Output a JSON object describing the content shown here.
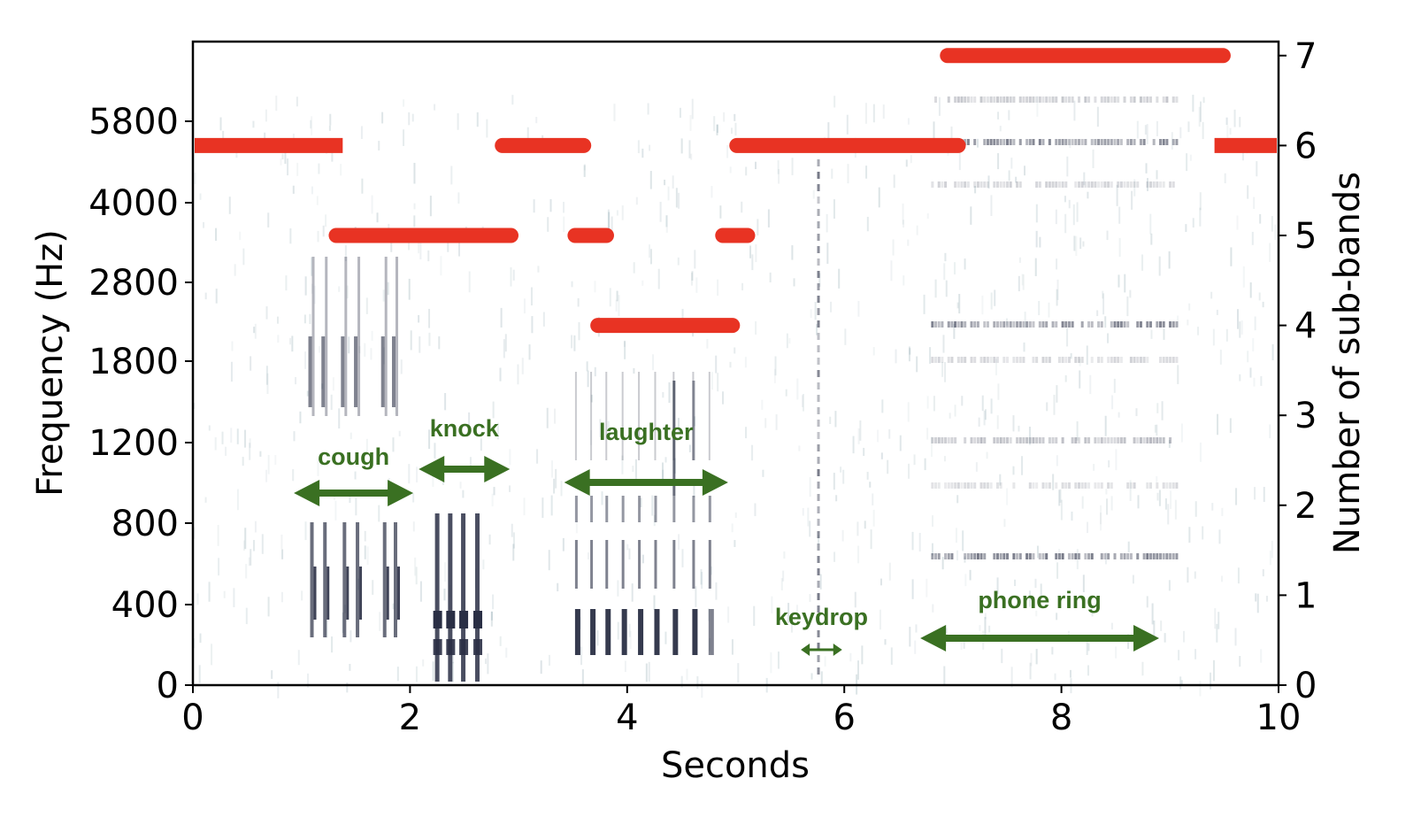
{
  "chart_data": {
    "type": "spectrogram_with_step_overlay",
    "title": "",
    "xlabel": "Seconds",
    "ylabel_left": "Frequency (Hz)",
    "ylabel_right": "Number of sub-bands",
    "xlim": [
      0,
      10
    ],
    "x_ticks": [
      "0",
      "2",
      "4",
      "6",
      "8",
      "10"
    ],
    "left_y_ticks": [
      "0",
      "400",
      "800",
      "1200",
      "1800",
      "2800",
      "4000",
      "5800"
    ],
    "right_y_ticks": [
      "0",
      "1",
      "2",
      "3",
      "4",
      "5",
      "6",
      "7"
    ],
    "right_ylim": [
      0,
      7
    ],
    "grid": false,
    "colors": {
      "overlay": "#e83323",
      "annotation": "#3a7022",
      "spectrogram": "#2a2f45"
    },
    "series": [
      {
        "name": "Number of sub-bands",
        "segments": [
          {
            "start": 0.0,
            "end": 1.38,
            "value": 6
          },
          {
            "start": 1.32,
            "end": 2.93,
            "value": 5
          },
          {
            "start": 2.85,
            "end": 3.6,
            "value": 6
          },
          {
            "start": 3.52,
            "end": 3.81,
            "value": 5
          },
          {
            "start": 3.73,
            "end": 4.97,
            "value": 4
          },
          {
            "start": 4.88,
            "end": 5.11,
            "value": 5
          },
          {
            "start": 5.01,
            "end": 7.05,
            "value": 6
          },
          {
            "start": 6.95,
            "end": 9.49,
            "value": 7
          },
          {
            "start": 9.41,
            "end": 10.0,
            "value": 6
          }
        ]
      }
    ],
    "annotations": [
      {
        "label": "cough",
        "start": 0.93,
        "end": 2.03
      },
      {
        "label": "knock",
        "start": 2.08,
        "end": 2.92
      },
      {
        "label": "laughter",
        "start": 3.42,
        "end": 4.93
      },
      {
        "label": "keydrop",
        "start": 5.6,
        "end": 5.98
      },
      {
        "label": "phone ring",
        "start": 6.7,
        "end": 8.9
      }
    ]
  }
}
